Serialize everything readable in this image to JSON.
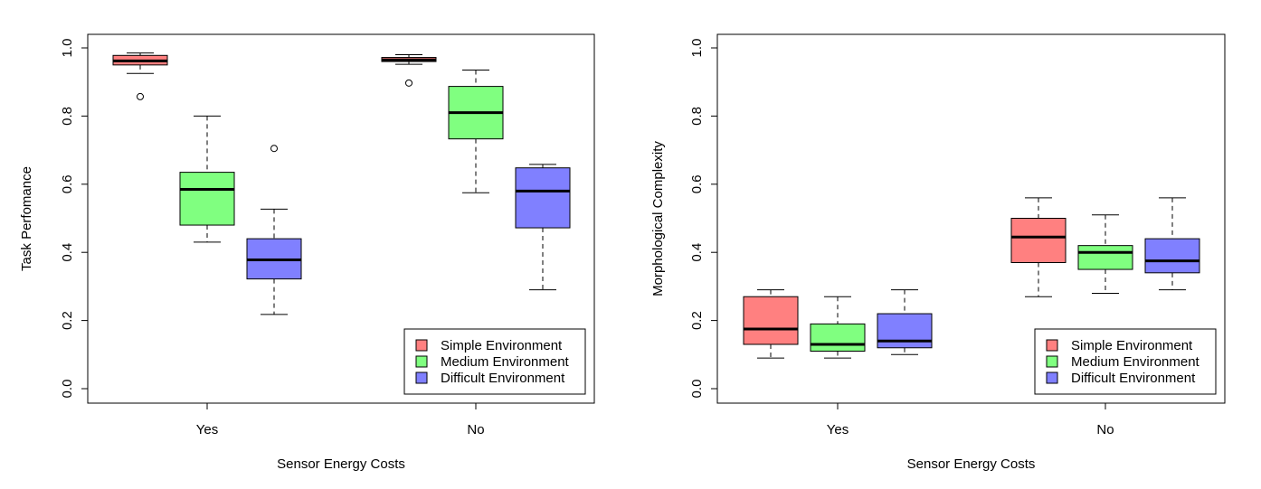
{
  "chart_data": [
    {
      "type": "boxplot",
      "xlabel": "Sensor Energy Costs",
      "ylabel": "Task Perfomance",
      "ylim": [
        0.0,
        1.0
      ],
      "yticks": [
        "0.0",
        "0.2",
        "0.4",
        "0.6",
        "0.8",
        "1.0"
      ],
      "categories": [
        "Yes",
        "No"
      ],
      "legend_position": "bottom-right",
      "series": [
        {
          "name": "Simple Environment",
          "color": "#ff8080",
          "boxes": [
            {
              "min": 0.925,
              "q1": 0.95,
              "median": 0.962,
              "q3": 0.978,
              "max": 0.985,
              "outliers": [
                0.857
              ]
            },
            {
              "min": 0.952,
              "q1": 0.96,
              "median": 0.965,
              "q3": 0.972,
              "max": 0.98,
              "outliers": [
                0.897
              ]
            }
          ]
        },
        {
          "name": "Medium Environment",
          "color": "#80ff80",
          "boxes": [
            {
              "min": 0.43,
              "q1": 0.48,
              "median": 0.585,
              "q3": 0.635,
              "max": 0.8,
              "outliers": []
            },
            {
              "min": 0.575,
              "q1": 0.733,
              "median": 0.81,
              "q3": 0.887,
              "max": 0.935,
              "outliers": []
            }
          ]
        },
        {
          "name": "Difficult Environment",
          "color": "#8080ff",
          "boxes": [
            {
              "min": 0.218,
              "q1": 0.322,
              "median": 0.378,
              "q3": 0.44,
              "max": 0.527,
              "outliers": [
                0.705
              ]
            },
            {
              "min": 0.29,
              "q1": 0.472,
              "median": 0.58,
              "q3": 0.648,
              "max": 0.658,
              "outliers": []
            }
          ]
        }
      ]
    },
    {
      "type": "boxplot",
      "xlabel": "Sensor Energy Costs",
      "ylabel": "Morphological Complexity",
      "ylim": [
        0.0,
        1.0
      ],
      "yticks": [
        "0.0",
        "0.2",
        "0.4",
        "0.6",
        "0.8",
        "1.0"
      ],
      "categories": [
        "Yes",
        "No"
      ],
      "legend_position": "bottom-right",
      "series": [
        {
          "name": "Simple Environment",
          "color": "#ff8080",
          "boxes": [
            {
              "min": 0.09,
              "q1": 0.13,
              "median": 0.175,
              "q3": 0.27,
              "max": 0.29,
              "outliers": []
            },
            {
              "min": 0.27,
              "q1": 0.37,
              "median": 0.445,
              "q3": 0.5,
              "max": 0.56,
              "outliers": []
            }
          ]
        },
        {
          "name": "Medium Environment",
          "color": "#80ff80",
          "boxes": [
            {
              "min": 0.09,
              "q1": 0.11,
              "median": 0.13,
              "q3": 0.19,
              "max": 0.27,
              "outliers": []
            },
            {
              "min": 0.28,
              "q1": 0.35,
              "median": 0.4,
              "q3": 0.42,
              "max": 0.51,
              "outliers": []
            }
          ]
        },
        {
          "name": "Difficult Environment",
          "color": "#8080ff",
          "boxes": [
            {
              "min": 0.1,
              "q1": 0.12,
              "median": 0.14,
              "q3": 0.22,
              "max": 0.29,
              "outliers": []
            },
            {
              "min": 0.29,
              "q1": 0.34,
              "median": 0.375,
              "q3": 0.44,
              "max": 0.56,
              "outliers": []
            }
          ]
        }
      ]
    }
  ]
}
